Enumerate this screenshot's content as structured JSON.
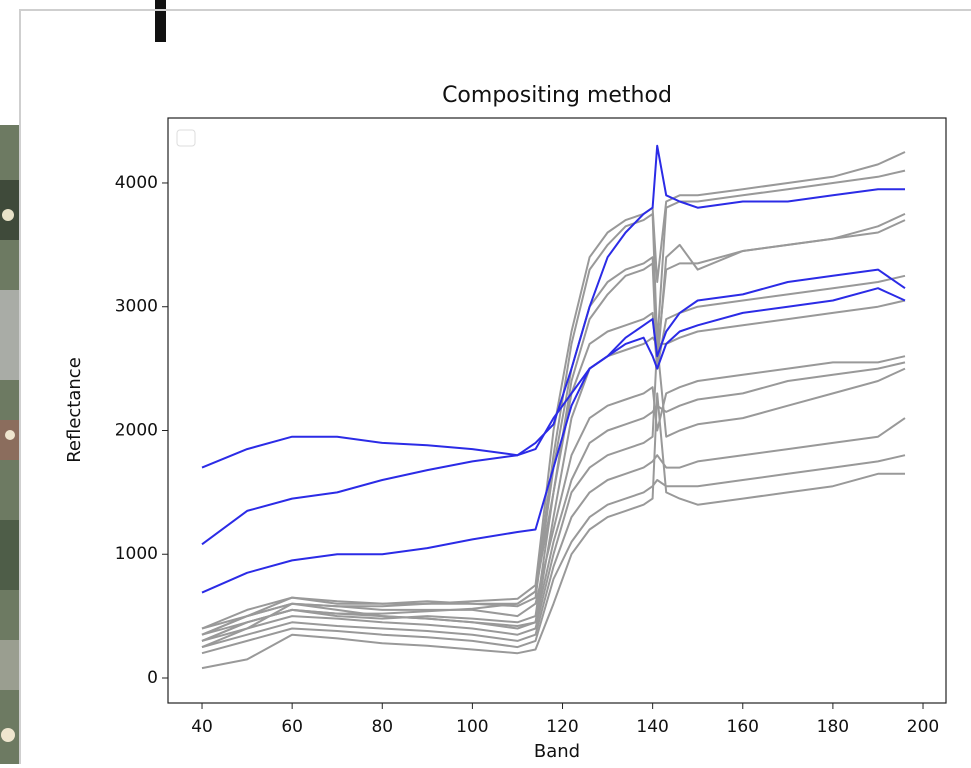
{
  "chart_data": {
    "type": "line",
    "title": "Compositing method",
    "xlabel": "Band",
    "ylabel": "Reflectance",
    "x": [
      40,
      50,
      60,
      70,
      80,
      90,
      100,
      110,
      114,
      118,
      122,
      126,
      130,
      134,
      138,
      140,
      141,
      143,
      146,
      150,
      160,
      170,
      180,
      190,
      196
    ],
    "series": [
      {
        "color": "#999999",
        "values": [
          80,
          150,
          350,
          320,
          280,
          260,
          230,
          200,
          230,
          600,
          1000,
          1200,
          1300,
          1350,
          1400,
          1450,
          2300,
          1500,
          1450,
          1400,
          1450,
          1500,
          1550,
          1650,
          1650
        ]
      },
      {
        "color": "#999999",
        "values": [
          200,
          300,
          400,
          380,
          350,
          330,
          300,
          250,
          300,
          800,
          1100,
          1300,
          1400,
          1450,
          1500,
          1550,
          1600,
          1550,
          1550,
          1550,
          1600,
          1650,
          1700,
          1750,
          1800
        ]
      },
      {
        "color": "#999999",
        "values": [
          250,
          350,
          450,
          420,
          400,
          380,
          350,
          300,
          350,
          900,
          1300,
          1500,
          1600,
          1650,
          1700,
          1750,
          1800,
          1700,
          1700,
          1750,
          1800,
          1850,
          1900,
          1950,
          2100
        ]
      },
      {
        "color": "#999999",
        "values": [
          300,
          400,
          500,
          480,
          450,
          430,
          400,
          350,
          400,
          1000,
          1500,
          1700,
          1800,
          1850,
          1900,
          1950,
          2700,
          1950,
          2000,
          2050,
          2100,
          2200,
          2300,
          2400,
          2500
        ]
      },
      {
        "color": "#999999",
        "values": [
          350,
          450,
          550,
          520,
          500,
          480,
          450,
          420,
          450,
          1100,
          1600,
          1900,
          2000,
          2050,
          2100,
          2150,
          2200,
          2150,
          2200,
          2250,
          2300,
          2400,
          2450,
          2500,
          2550
        ]
      },
      {
        "color": "#999999",
        "values": [
          400,
          500,
          600,
          580,
          550,
          550,
          550,
          500,
          600,
          1200,
          1800,
          2100,
          2200,
          2250,
          2300,
          2350,
          2000,
          2300,
          2350,
          2400,
          2450,
          2500,
          2550,
          2550,
          2600
        ]
      },
      {
        "color": "#999999",
        "values": [
          250,
          400,
          600,
          550,
          500,
          480,
          450,
          400,
          450,
          1300,
          2100,
          2500,
          2600,
          2650,
          2700,
          2750,
          2700,
          2700,
          2750,
          2800,
          2850,
          2900,
          2950,
          3000,
          3050
        ]
      },
      {
        "color": "#999999",
        "values": [
          350,
          500,
          650,
          600,
          600,
          600,
          600,
          600,
          700,
          1500,
          2300,
          2700,
          2800,
          2850,
          2900,
          2950,
          2500,
          2900,
          2950,
          3000,
          3050,
          3100,
          3150,
          3200,
          3250
        ]
      },
      {
        "color": "#999999",
        "values": [
          400,
          550,
          650,
          620,
          600,
          620,
          600,
          580,
          650,
          1700,
          2500,
          3000,
          3200,
          3300,
          3350,
          3400,
          2600,
          3300,
          3350,
          3350,
          3450,
          3500,
          3550,
          3600,
          3700
        ]
      },
      {
        "color": "#999999",
        "values": [
          300,
          450,
          550,
          500,
          480,
          500,
          480,
          450,
          500,
          1500,
          2400,
          2900,
          3100,
          3250,
          3300,
          3350,
          2500,
          3400,
          3500,
          3300,
          3450,
          3500,
          3550,
          3650,
          3750
        ]
      },
      {
        "color": "#999999",
        "values": [
          300,
          450,
          550,
          520,
          520,
          540,
          560,
          600,
          700,
          1800,
          2700,
          3300,
          3500,
          3650,
          3700,
          3750,
          2700,
          3800,
          3850,
          3850,
          3900,
          3950,
          4000,
          4050,
          4100
        ]
      },
      {
        "color": "#999999",
        "values": [
          350,
          500,
          600,
          580,
          580,
          600,
          620,
          640,
          750,
          2000,
          2800,
          3400,
          3600,
          3700,
          3750,
          3800,
          3200,
          3850,
          3900,
          3900,
          3950,
          4000,
          4050,
          4150,
          4250
        ]
      },
      {
        "color": "#2b2be6",
        "values": [
          1700,
          1850,
          1950,
          1950,
          1900,
          1880,
          1850,
          1800,
          1900,
          2050,
          2500,
          3000,
          3400,
          3600,
          3750,
          3800,
          4300,
          3900,
          3850,
          3800,
          3850,
          3850,
          3900,
          3950,
          3950
        ]
      },
      {
        "color": "#2b2be6",
        "values": [
          1080,
          1350,
          1450,
          1500,
          1600,
          1680,
          1750,
          1800,
          1850,
          2100,
          2300,
          2500,
          2600,
          2750,
          2850,
          2900,
          2600,
          2800,
          2950,
          3050,
          3100,
          3200,
          3250,
          3300,
          3150
        ]
      },
      {
        "color": "#2b2be6",
        "values": [
          690,
          850,
          950,
          1000,
          1000,
          1050,
          1120,
          1180,
          1200,
          1700,
          2200,
          2500,
          2600,
          2700,
          2750,
          2600,
          2500,
          2700,
          2800,
          2850,
          2950,
          3000,
          3050,
          3150,
          3050
        ]
      }
    ],
    "xlim": [
      32.45,
      205.1
    ],
    "ylim": [
      -202,
      4525
    ],
    "xticks": [
      40,
      60,
      80,
      100,
      120,
      140,
      160,
      180,
      200
    ],
    "yticks": [
      0,
      1000,
      2000,
      3000,
      4000
    ],
    "legend": "upper left"
  }
}
